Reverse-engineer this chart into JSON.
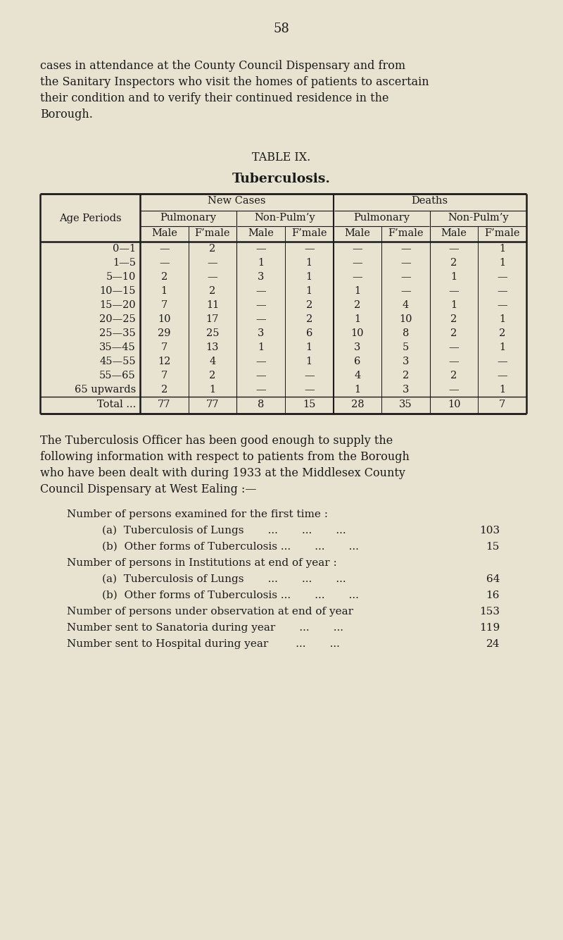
{
  "page_number": "58",
  "bg_color": "#e8e2d0",
  "text_color": "#1a1a1a",
  "intro_text": [
    "cases in attendance at the County Council Dispensary and from",
    "the Sanitary Inspectors who visit the homes of patients to ascertain",
    "their condition and to verify their continued residence in the",
    "Borough."
  ],
  "table_title": "TABLE IX.",
  "table_subtitle": "Tuberculosis.",
  "age_periods": [
    "0—1",
    "1—5",
    "5—10",
    "10—15",
    "15—20",
    "20—25",
    "25—35",
    "35—45",
    "45—55",
    "55—65",
    "65 upwards",
    "Total ..."
  ],
  "table_data": [
    [
      "—",
      "2",
      "—",
      "—",
      "—",
      "—",
      "—",
      "1"
    ],
    [
      "—",
      "—",
      "1",
      "1",
      "—",
      "—",
      "2",
      "1"
    ],
    [
      "2",
      "—",
      "3",
      "1",
      "—",
      "—",
      "1",
      "—"
    ],
    [
      "1",
      "2",
      "—",
      "1",
      "1",
      "—",
      "—",
      "—"
    ],
    [
      "7",
      "11",
      "—",
      "2",
      "2",
      "4",
      "1",
      "—"
    ],
    [
      "10",
      "17",
      "—",
      "2",
      "1",
      "10",
      "2",
      "1"
    ],
    [
      "29",
      "25",
      "3",
      "6",
      "10",
      "8",
      "2",
      "2"
    ],
    [
      "7",
      "13",
      "1",
      "1",
      "3",
      "5",
      "—",
      "1"
    ],
    [
      "12",
      "4",
      "—",
      "1",
      "6",
      "3",
      "—",
      "—"
    ],
    [
      "7",
      "2",
      "—",
      "—",
      "4",
      "2",
      "2",
      "—"
    ],
    [
      "2",
      "1",
      "—",
      "—",
      "1",
      "3",
      "—",
      "1"
    ],
    [
      "77",
      "77",
      "8",
      "15",
      "28",
      "35",
      "10",
      "7"
    ]
  ],
  "para2_text": [
    "The Tuberculosis Officer has been good enough to supply the",
    "following information with respect to patients from the Borough",
    "who have been dealt with during 1933 at the Middlesex County",
    "Council Dispensary at West Ealing :—"
  ],
  "list_items": [
    {
      "indent": 0,
      "text": "Number of persons examined for the first time :",
      "value": ""
    },
    {
      "indent": 1,
      "text": "(a)  Tuberculosis of Lungs       ...       ...       ...",
      "value": "103"
    },
    {
      "indent": 1,
      "text": "(b)  Other forms of Tuberculosis ...       ...       ...",
      "value": "15"
    },
    {
      "indent": 0,
      "text": "Number of persons in Institutions at end of year :",
      "value": ""
    },
    {
      "indent": 1,
      "text": "(a)  Tuberculosis of Lungs       ...       ...       ...",
      "value": "64"
    },
    {
      "indent": 1,
      "text": "(b)  Other forms of Tuberculosis ...       ...       ...",
      "value": "16"
    },
    {
      "indent": 0,
      "text": "Number of persons under observation at end of year",
      "value": "153"
    },
    {
      "indent": 0,
      "text": "Number sent to Sanatoria during year       ...       ...",
      "value": "119"
    },
    {
      "indent": 0,
      "text": "Number sent to Hospital during year        ...       ...",
      "value": "24"
    }
  ]
}
